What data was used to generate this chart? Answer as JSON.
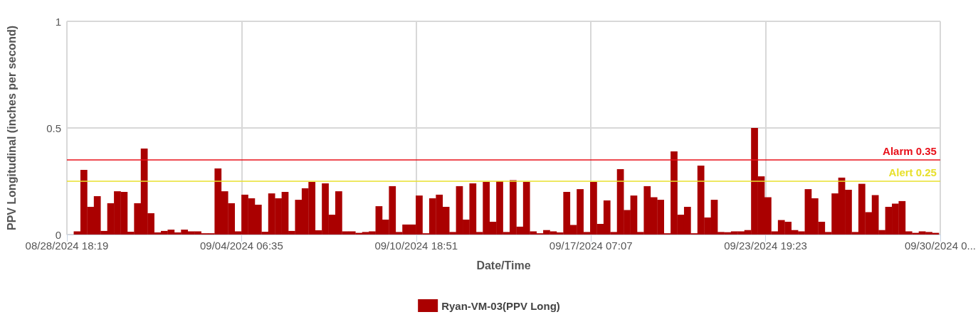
{
  "chart_data": {
    "type": "bar",
    "xlabel": "Date/Time",
    "ylabel": "PPV Longitudinal (inches per second)",
    "x": [
      "2024-08-29T03:30",
      "2024-08-29T09:30",
      "2024-08-29T15:30",
      "2024-08-29T21:30",
      "2024-08-30T03:30",
      "2024-08-30T09:30",
      "2024-08-30T15:30",
      "2024-08-30T21:30",
      "2024-08-31T03:30",
      "2024-08-31T09:30",
      "2024-08-31T15:30",
      "2024-08-31T21:30",
      "2024-09-01T03:30",
      "2024-09-01T09:30",
      "2024-09-01T15:30",
      "2024-09-01T21:30",
      "2024-09-02T03:30",
      "2024-09-02T09:30",
      "2024-09-02T15:30",
      "2024-09-02T21:30",
      "2024-09-03T03:30",
      "2024-09-03T09:30",
      "2024-09-03T15:30",
      "2024-09-03T21:30",
      "2024-09-04T03:30",
      "2024-09-04T09:30",
      "2024-09-04T15:30",
      "2024-09-04T21:30",
      "2024-09-05T03:30",
      "2024-09-05T09:30",
      "2024-09-05T15:30",
      "2024-09-05T21:30",
      "2024-09-06T03:30",
      "2024-09-06T09:30",
      "2024-09-06T15:30",
      "2024-09-06T21:30",
      "2024-09-07T03:30",
      "2024-09-07T09:30",
      "2024-09-07T15:30",
      "2024-09-07T21:30",
      "2024-09-08T03:30",
      "2024-09-08T09:30",
      "2024-09-08T15:30",
      "2024-09-08T21:30",
      "2024-09-09T03:30",
      "2024-09-09T09:30",
      "2024-09-09T15:30",
      "2024-09-09T21:30",
      "2024-09-10T03:30",
      "2024-09-10T09:30",
      "2024-09-10T15:30",
      "2024-09-10T21:30",
      "2024-09-11T03:30",
      "2024-09-11T09:30",
      "2024-09-11T15:30",
      "2024-09-11T21:30",
      "2024-09-12T03:30",
      "2024-09-12T09:30",
      "2024-09-12T15:30",
      "2024-09-12T21:30",
      "2024-09-13T03:30",
      "2024-09-13T09:30",
      "2024-09-13T15:30",
      "2024-09-13T21:30",
      "2024-09-14T03:30",
      "2024-09-14T09:30",
      "2024-09-14T15:30",
      "2024-09-14T21:30",
      "2024-09-15T03:30",
      "2024-09-15T09:30",
      "2024-09-15T15:30",
      "2024-09-15T21:30",
      "2024-09-16T03:30",
      "2024-09-16T09:30",
      "2024-09-16T15:30",
      "2024-09-16T21:30",
      "2024-09-17T03:30",
      "2024-09-17T09:30",
      "2024-09-17T15:30",
      "2024-09-17T21:30",
      "2024-09-18T03:30",
      "2024-09-18T09:30",
      "2024-09-18T15:30",
      "2024-09-18T21:30",
      "2024-09-19T03:30",
      "2024-09-19T09:30",
      "2024-09-19T15:30",
      "2024-09-19T21:30",
      "2024-09-20T03:30",
      "2024-09-20T09:30",
      "2024-09-20T15:30",
      "2024-09-20T21:30",
      "2024-09-21T03:30",
      "2024-09-21T09:30",
      "2024-09-21T15:30",
      "2024-09-21T21:30",
      "2024-09-22T03:30",
      "2024-09-22T09:30",
      "2024-09-22T15:30",
      "2024-09-22T21:30",
      "2024-09-23T03:30",
      "2024-09-23T09:30",
      "2024-09-23T15:30",
      "2024-09-23T21:30",
      "2024-09-24T03:30",
      "2024-09-24T09:30",
      "2024-09-24T15:30",
      "2024-09-24T21:30",
      "2024-09-25T03:30",
      "2024-09-25T09:30",
      "2024-09-25T15:30",
      "2024-09-25T21:30",
      "2024-09-26T03:30",
      "2024-09-26T09:30",
      "2024-09-26T15:30",
      "2024-09-26T21:30",
      "2024-09-27T03:30",
      "2024-09-27T09:30",
      "2024-09-27T15:30",
      "2024-09-27T21:30",
      "2024-09-28T03:30",
      "2024-09-28T09:30",
      "2024-09-28T15:30",
      "2024-09-28T21:30",
      "2024-09-29T03:30",
      "2024-09-29T09:30",
      "2024-09-29T15:30",
      "2024-09-29T21:30",
      "2024-09-30T03:30"
    ],
    "series": [
      {
        "name": "Ryan-VM-03(PPV Long)",
        "color": "#aa0000",
        "values": [
          0.015,
          0.303,
          0.13,
          0.18,
          0.017,
          0.147,
          0.203,
          0.2,
          0.013,
          0.147,
          0.403,
          0.1,
          0.01,
          0.017,
          0.023,
          0.01,
          0.023,
          0.015,
          0.015,
          0.006,
          0.006,
          0.31,
          0.203,
          0.147,
          0.015,
          0.187,
          0.17,
          0.14,
          0.013,
          0.193,
          0.17,
          0.2,
          0.017,
          0.163,
          0.217,
          0.247,
          0.02,
          0.24,
          0.093,
          0.203,
          0.015,
          0.015,
          0.008,
          0.012,
          0.015,
          0.133,
          0.07,
          0.227,
          0.012,
          0.047,
          0.047,
          0.183,
          0.006,
          0.17,
          0.187,
          0.13,
          0.012,
          0.227,
          0.07,
          0.24,
          0.012,
          0.247,
          0.06,
          0.25,
          0.012,
          0.255,
          0.037,
          0.247,
          0.015,
          0.006,
          0.021,
          0.015,
          0.01,
          0.2,
          0.045,
          0.213,
          0.012,
          0.247,
          0.05,
          0.16,
          0.012,
          0.307,
          0.115,
          0.183,
          0.012,
          0.227,
          0.175,
          0.163,
          0.006,
          0.39,
          0.093,
          0.13,
          0.006,
          0.323,
          0.08,
          0.163,
          0.012,
          0.011,
          0.015,
          0.015,
          0.021,
          0.5,
          0.273,
          0.175,
          0.015,
          0.068,
          0.06,
          0.021,
          0.015,
          0.213,
          0.17,
          0.06,
          0.012,
          0.193,
          0.267,
          0.21,
          0.012,
          0.238,
          0.105,
          0.185,
          0.021,
          0.13,
          0.145,
          0.157,
          0.015,
          0.008,
          0.015,
          0.012,
          0.008
        ]
      }
    ],
    "xlim": [
      "2024-08-28T18:19",
      "2024-09-30T07:39"
    ],
    "xticks": [
      {
        "value": "2024-08-28T18:19",
        "label": "08/28/2024 18:19"
      },
      {
        "value": "2024-09-04T06:35",
        "label": "09/04/2024 06:35"
      },
      {
        "value": "2024-09-10T18:51",
        "label": "09/10/2024 18:51"
      },
      {
        "value": "2024-09-17T07:07",
        "label": "09/17/2024 07:07"
      },
      {
        "value": "2024-09-23T19:23",
        "label": "09/23/2024 19:23"
      },
      {
        "value": "2024-09-30T07:39",
        "label": "09/30/2024 0..."
      }
    ],
    "ylim": [
      0,
      1
    ],
    "yticks": [
      0,
      0.5,
      1
    ],
    "ref_lines": [
      {
        "axis": "y",
        "value": 0.35,
        "label": "Alarm 0.35",
        "color": "#e8101a"
      },
      {
        "axis": "y",
        "value": 0.25,
        "label": "Alert 0.25",
        "color": "#e8e02c"
      }
    ],
    "grid": true,
    "legend": "bottom"
  }
}
